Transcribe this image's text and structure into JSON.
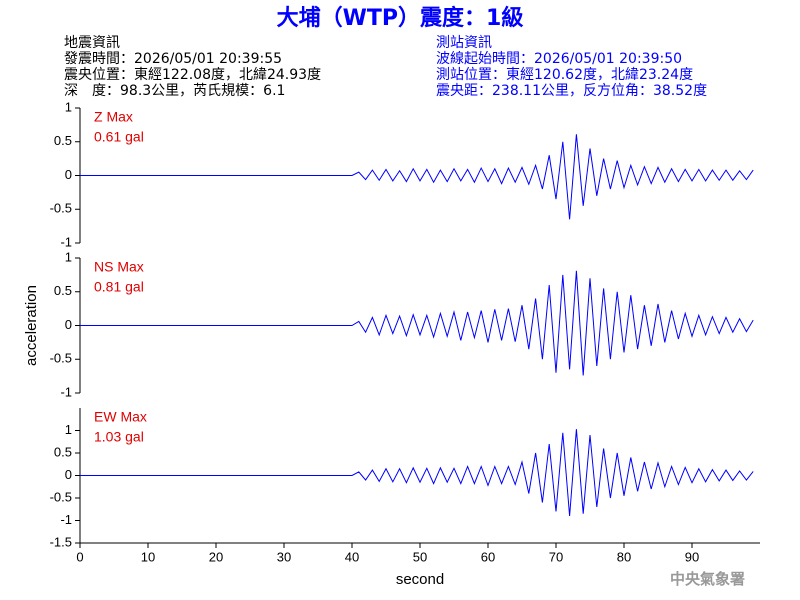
{
  "header": {
    "title": "大埔（WTP）震度：1級",
    "left": [
      "地震資訊",
      "發震時間：2026/05/01 20:39:55",
      "震央位置：東經122.08度，北緯24.93度",
      "深　度：98.3公里，芮氏規模：6.1"
    ],
    "right": [
      "測站資訊",
      "波線起始時間：2026/05/01 20:39:50",
      "測站位置：東經120.62度，北緯23.24度",
      "震央距：238.11公里，反方位角：38.52度"
    ]
  },
  "footer": "中央氣象署",
  "chart_data": [
    {
      "type": "line",
      "annotations": [
        "Z Max",
        "0.61 gal"
      ],
      "annotation_color": "#e00000",
      "xlim": [
        0,
        100
      ],
      "ylim": [
        -1,
        1
      ],
      "yticks": [
        -1,
        -0.5,
        0,
        0.5,
        1
      ],
      "x": [
        0,
        1,
        2,
        3,
        4,
        5,
        6,
        7,
        8,
        9,
        10,
        11,
        12,
        13,
        14,
        15,
        16,
        17,
        18,
        19,
        20,
        21,
        22,
        23,
        24,
        25,
        26,
        27,
        28,
        29,
        30,
        31,
        32,
        33,
        34,
        35,
        36,
        37,
        38,
        39,
        40,
        41,
        42,
        43,
        44,
        45,
        46,
        47,
        48,
        49,
        50,
        51,
        52,
        53,
        54,
        55,
        56,
        57,
        58,
        59,
        60,
        61,
        62,
        63,
        64,
        65,
        66,
        67,
        68,
        69,
        70,
        71,
        72,
        73,
        74,
        75,
        76,
        77,
        78,
        79,
        80,
        81,
        82,
        83,
        84,
        85,
        86,
        87,
        88,
        89,
        90,
        91,
        92,
        93,
        94,
        95,
        96,
        97,
        98,
        99
      ],
      "series": [
        {
          "color": "#0000ff",
          "values": [
            0,
            0,
            0,
            0,
            0,
            0,
            0,
            0,
            0,
            0,
            0,
            0,
            0,
            0,
            0,
            0,
            0,
            0,
            0,
            0,
            0,
            0,
            0,
            0,
            0,
            0,
            0,
            0,
            0,
            0,
            0,
            0,
            0,
            0,
            0,
            0,
            0,
            0,
            0,
            0,
            0,
            0.05,
            -0.06,
            0.08,
            -0.07,
            0.09,
            -0.08,
            0.07,
            -0.09,
            0.1,
            -0.08,
            0.09,
            -0.1,
            0.08,
            -0.09,
            0.1,
            -0.08,
            0.09,
            -0.1,
            0.11,
            -0.09,
            0.1,
            -0.12,
            0.11,
            -0.1,
            0.12,
            -0.13,
            0.15,
            -0.2,
            0.3,
            -0.35,
            0.5,
            -0.65,
            0.61,
            -0.45,
            0.4,
            -0.3,
            0.25,
            -0.2,
            0.22,
            -0.18,
            0.15,
            -0.14,
            0.13,
            -0.12,
            0.12,
            -0.1,
            0.1,
            -0.09,
            0.09,
            -0.08,
            0.09,
            -0.08,
            0.08,
            -0.07,
            0.08,
            -0.07,
            0.07,
            -0.06,
            0.08
          ]
        }
      ]
    },
    {
      "type": "line",
      "annotations": [
        "NS Max",
        "0.81 gal"
      ],
      "annotation_color": "#e00000",
      "ylabel": "acceleration",
      "xlim": [
        0,
        100
      ],
      "ylim": [
        -1,
        1
      ],
      "yticks": [
        -1,
        -0.5,
        0,
        0.5,
        1
      ],
      "x": [
        0,
        1,
        2,
        3,
        4,
        5,
        6,
        7,
        8,
        9,
        10,
        11,
        12,
        13,
        14,
        15,
        16,
        17,
        18,
        19,
        20,
        21,
        22,
        23,
        24,
        25,
        26,
        27,
        28,
        29,
        30,
        31,
        32,
        33,
        34,
        35,
        36,
        37,
        38,
        39,
        40,
        41,
        42,
        43,
        44,
        45,
        46,
        47,
        48,
        49,
        50,
        51,
        52,
        53,
        54,
        55,
        56,
        57,
        58,
        59,
        60,
        61,
        62,
        63,
        64,
        65,
        66,
        67,
        68,
        69,
        70,
        71,
        72,
        73,
        74,
        75,
        76,
        77,
        78,
        79,
        80,
        81,
        82,
        83,
        84,
        85,
        86,
        87,
        88,
        89,
        90,
        91,
        92,
        93,
        94,
        95,
        96,
        97,
        98,
        99
      ],
      "series": [
        {
          "color": "#0000ff",
          "values": [
            0,
            0,
            0,
            0,
            0,
            0,
            0,
            0,
            0,
            0,
            0,
            0,
            0,
            0,
            0,
            0,
            0,
            0,
            0,
            0,
            0,
            0,
            0,
            0,
            0,
            0,
            0,
            0,
            0,
            0,
            0,
            0,
            0,
            0,
            0,
            0,
            0,
            0,
            0,
            0,
            0,
            0.06,
            -0.1,
            0.12,
            -0.14,
            0.15,
            -0.12,
            0.14,
            -0.15,
            0.16,
            -0.14,
            0.15,
            -0.17,
            0.18,
            -0.16,
            0.2,
            -0.22,
            0.2,
            -0.18,
            0.22,
            -0.25,
            0.24,
            -0.22,
            0.25,
            -0.24,
            0.3,
            -0.35,
            0.4,
            -0.5,
            0.6,
            -0.7,
            0.75,
            -0.65,
            0.81,
            -0.74,
            0.7,
            -0.6,
            0.55,
            -0.5,
            0.5,
            -0.4,
            0.45,
            -0.35,
            0.3,
            -0.3,
            0.32,
            -0.25,
            0.22,
            -0.2,
            0.18,
            -0.16,
            0.15,
            -0.14,
            0.13,
            -0.12,
            0.12,
            -0.1,
            0.1,
            -0.09,
            0.08
          ]
        }
      ]
    },
    {
      "type": "line",
      "annotations": [
        "EW Max",
        "1.03 gal"
      ],
      "annotation_color": "#e00000",
      "xlabel": "second",
      "xlim": [
        0,
        100
      ],
      "xticks": [
        0,
        10,
        20,
        30,
        40,
        50,
        60,
        70,
        80,
        90
      ],
      "ylim": [
        -1.5,
        1.5
      ],
      "yticks": [
        -1.5,
        -1,
        -0.5,
        0,
        0.5,
        1
      ],
      "x": [
        0,
        1,
        2,
        3,
        4,
        5,
        6,
        7,
        8,
        9,
        10,
        11,
        12,
        13,
        14,
        15,
        16,
        17,
        18,
        19,
        20,
        21,
        22,
        23,
        24,
        25,
        26,
        27,
        28,
        29,
        30,
        31,
        32,
        33,
        34,
        35,
        36,
        37,
        38,
        39,
        40,
        41,
        42,
        43,
        44,
        45,
        46,
        47,
        48,
        49,
        50,
        51,
        52,
        53,
        54,
        55,
        56,
        57,
        58,
        59,
        60,
        61,
        62,
        63,
        64,
        65,
        66,
        67,
        68,
        69,
        70,
        71,
        72,
        73,
        74,
        75,
        76,
        77,
        78,
        79,
        80,
        81,
        82,
        83,
        84,
        85,
        86,
        87,
        88,
        89,
        90,
        91,
        92,
        93,
        94,
        95,
        96,
        97,
        98,
        99
      ],
      "series": [
        {
          "color": "#0000ff",
          "values": [
            0,
            0,
            0,
            0,
            0,
            0,
            0,
            0,
            0,
            0,
            0,
            0,
            0,
            0,
            0,
            0,
            0,
            0,
            0,
            0,
            0,
            0,
            0,
            0,
            0,
            0,
            0,
            0,
            0,
            0,
            0,
            0,
            0,
            0,
            0,
            0,
            0,
            0,
            0,
            0,
            0,
            0.08,
            -0.1,
            0.12,
            -0.13,
            0.15,
            -0.14,
            0.15,
            -0.16,
            0.17,
            -0.15,
            0.16,
            -0.18,
            0.17,
            -0.15,
            0.16,
            -0.18,
            0.2,
            -0.18,
            0.2,
            -0.22,
            0.2,
            -0.18,
            0.2,
            -0.2,
            0.3,
            -0.4,
            0.5,
            -0.6,
            0.7,
            -0.8,
            0.95,
            -0.9,
            1.03,
            -0.85,
            0.9,
            -0.7,
            0.6,
            -0.5,
            0.5,
            -0.45,
            0.4,
            -0.35,
            0.3,
            -0.3,
            0.28,
            -0.25,
            0.2,
            -0.2,
            0.18,
            -0.16,
            0.15,
            -0.14,
            0.13,
            -0.12,
            0.12,
            -0.11,
            0.1,
            -0.1,
            0.09
          ]
        }
      ]
    }
  ]
}
